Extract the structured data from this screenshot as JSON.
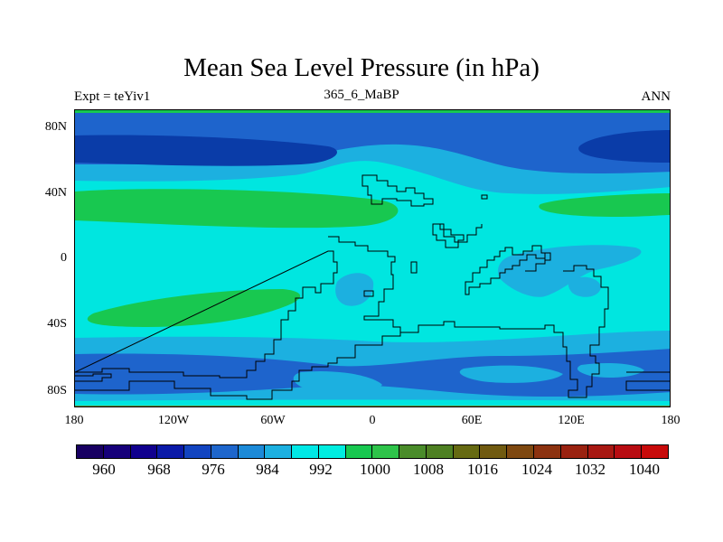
{
  "title": "Mean Sea Level Pressure (in hPa)",
  "subtitle_left": "Expt = teYiv1",
  "subtitle_center": "365_6_MaBP",
  "subtitle_right": "ANN",
  "y_axis": {
    "labels": [
      "80N",
      "40N",
      "0",
      "40S",
      "80S"
    ],
    "values": [
      80,
      40,
      0,
      -40,
      -80
    ]
  },
  "x_axis": {
    "labels": [
      "180",
      "120W",
      "60W",
      "0",
      "60E",
      "120E",
      "180"
    ],
    "values": [
      -180,
      -120,
      -60,
      0,
      60,
      120,
      180
    ]
  },
  "colorbar": {
    "labels": [
      "960",
      "968",
      "976",
      "984",
      "992",
      "1000",
      "1008",
      "1016",
      "1024",
      "1032",
      "1040"
    ],
    "colors": [
      "#180062",
      "#16007a",
      "#10008e",
      "#0a1aa8",
      "#1244c0",
      "#1e66cc",
      "#1c8ad8",
      "#1cb0e0",
      "#00e8e6",
      "#00ede0",
      "#18c850",
      "#2ec44a",
      "#4a8c2a",
      "#4e8022",
      "#666a12",
      "#705a10",
      "#7e4810",
      "#8c3210",
      "#9a2210",
      "#a81812",
      "#b80c12",
      "#c80a0a"
    ]
  },
  "colors": {
    "field_base": "#00e6e0",
    "level_984": "#1e64cc",
    "level_992": "#1cb0e0",
    "level_1008": "#18c850",
    "deep_low": "#0a3ca8"
  }
}
